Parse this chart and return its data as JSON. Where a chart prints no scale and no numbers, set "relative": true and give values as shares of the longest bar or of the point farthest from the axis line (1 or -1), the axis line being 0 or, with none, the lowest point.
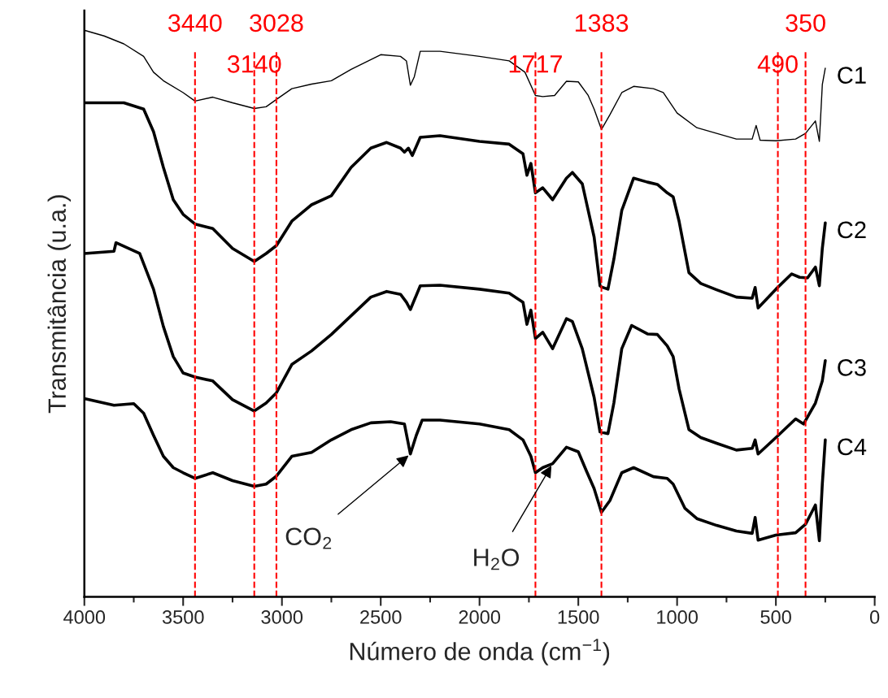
{
  "chart_data": {
    "type": "line",
    "relative": true,
    "xlabel": "Número de onda (cm$^{−1}$)",
    "ylabel": "Transmitância (u.a.)",
    "xlim": [
      4000,
      0
    ],
    "xticks": [
      4000,
      {
        "value": 3750,
        "label": null
      },
      3500,
      {
        "value": 3250,
        "label": null
      },
      3000,
      {
        "value": 2750,
        "label": null
      },
      2500,
      {
        "value": 2250,
        "label": null
      },
      2000,
      {
        "value": 1750,
        "label": null
      },
      1500,
      {
        "value": 1250,
        "label": null
      },
      1000,
      {
        "value": 750,
        "label": null
      },
      500,
      {
        "value": 250,
        "label": null
      },
      0
    ],
    "grid": false,
    "legend": false,
    "marker": "none",
    "line_style": "solid",
    "series": [
      {
        "name": "C1",
        "color": "#000000",
        "x": [
          4000,
          3900,
          3800,
          3700,
          3650,
          3600,
          3500,
          3440,
          3350,
          3250,
          3140,
          3080,
          3028,
          2950,
          2850,
          2750,
          2650,
          2500,
          2400,
          2370,
          2350,
          2330,
          2300,
          2200,
          2000,
          1850,
          1770,
          1717,
          1680,
          1620,
          1560,
          1500,
          1450,
          1420,
          1383,
          1340,
          1280,
          1220,
          1120,
          1070,
          1000,
          900,
          800,
          700,
          620,
          600,
          580,
          500,
          400,
          350,
          300,
          280,
          265,
          250
        ],
        "values": [
          1.0,
          0.99,
          0.976,
          0.954,
          0.926,
          0.911,
          0.89,
          0.875,
          0.882,
          0.872,
          0.862,
          0.865,
          0.878,
          0.897,
          0.905,
          0.911,
          0.931,
          0.957,
          0.954,
          0.946,
          0.903,
          0.918,
          0.963,
          0.963,
          0.954,
          0.946,
          0.926,
          0.885,
          0.883,
          0.885,
          0.91,
          0.909,
          0.885,
          0.861,
          0.825,
          0.851,
          0.89,
          0.901,
          0.897,
          0.89,
          0.854,
          0.828,
          0.818,
          0.808,
          0.808,
          0.832,
          0.806,
          0.805,
          0.808,
          0.818,
          0.84,
          0.804,
          0.904,
          0.933
        ]
      },
      {
        "name": "C2",
        "color": "#000000",
        "x": [
          4000,
          3800,
          3700,
          3650,
          3600,
          3550,
          3500,
          3440,
          3350,
          3250,
          3140,
          3080,
          3028,
          2950,
          2850,
          2750,
          2650,
          2550,
          2470,
          2400,
          2380,
          2360,
          2340,
          2300,
          2200,
          2000,
          1850,
          1780,
          1760,
          1740,
          1717,
          1680,
          1630,
          1560,
          1530,
          1480,
          1420,
          1390,
          1383,
          1350,
          1320,
          1280,
          1220,
          1150,
          1100,
          1050,
          1020,
          990,
          940,
          880,
          800,
          700,
          620,
          605,
          590,
          500,
          420,
          380,
          340,
          300,
          280,
          265,
          250
        ],
        "values": [
          0.872,
          0.872,
          0.861,
          0.821,
          0.758,
          0.701,
          0.675,
          0.658,
          0.65,
          0.615,
          0.592,
          0.606,
          0.62,
          0.663,
          0.692,
          0.708,
          0.758,
          0.792,
          0.802,
          0.792,
          0.785,
          0.792,
          0.779,
          0.811,
          0.814,
          0.804,
          0.799,
          0.782,
          0.744,
          0.765,
          0.713,
          0.722,
          0.701,
          0.739,
          0.749,
          0.729,
          0.635,
          0.549,
          0.547,
          0.543,
          0.596,
          0.682,
          0.739,
          0.732,
          0.728,
          0.713,
          0.706,
          0.663,
          0.572,
          0.553,
          0.542,
          0.529,
          0.527,
          0.546,
          0.51,
          0.543,
          0.57,
          0.564,
          0.563,
          0.582,
          0.549,
          0.615,
          0.66
        ]
      },
      {
        "name": "C3",
        "color": "#000000",
        "x": [
          4000,
          3850,
          3840,
          3720,
          3650,
          3600,
          3550,
          3500,
          3440,
          3350,
          3250,
          3140,
          3080,
          3028,
          2950,
          2850,
          2750,
          2650,
          2550,
          2470,
          2400,
          2370,
          2350,
          2300,
          2200,
          2000,
          1850,
          1780,
          1760,
          1740,
          1717,
          1680,
          1630,
          1560,
          1530,
          1480,
          1420,
          1390,
          1350,
          1320,
          1280,
          1230,
          1150,
          1100,
          1050,
          1020,
          990,
          940,
          880,
          800,
          700,
          620,
          605,
          590,
          500,
          400,
          360,
          300,
          265,
          250
        ],
        "values": [
          0.606,
          0.61,
          0.625,
          0.606,
          0.543,
          0.477,
          0.424,
          0.395,
          0.388,
          0.381,
          0.348,
          0.328,
          0.342,
          0.36,
          0.41,
          0.434,
          0.463,
          0.496,
          0.529,
          0.539,
          0.534,
          0.52,
          0.507,
          0.549,
          0.55,
          0.543,
          0.536,
          0.52,
          0.481,
          0.506,
          0.456,
          0.467,
          0.438,
          0.491,
          0.486,
          0.438,
          0.352,
          0.291,
          0.288,
          0.342,
          0.438,
          0.479,
          0.464,
          0.463,
          0.443,
          0.424,
          0.367,
          0.295,
          0.281,
          0.271,
          0.259,
          0.262,
          0.277,
          0.252,
          0.281,
          0.314,
          0.305,
          0.342,
          0.381,
          0.417
        ]
      },
      {
        "name": "C4",
        "color": "#000000",
        "x": [
          4000,
          3850,
          3750,
          3700,
          3650,
          3600,
          3550,
          3500,
          3440,
          3350,
          3250,
          3140,
          3080,
          3028,
          2950,
          2850,
          2750,
          2650,
          2550,
          2450,
          2380,
          2350,
          2320,
          2290,
          2200,
          2000,
          1850,
          1780,
          1740,
          1717,
          1680,
          1630,
          1560,
          1500,
          1460,
          1420,
          1383,
          1340,
          1280,
          1220,
          1120,
          1050,
          1020,
          960,
          900,
          800,
          700,
          620,
          605,
          590,
          500,
          400,
          350,
          300,
          280,
          265,
          250
        ],
        "values": [
          0.35,
          0.338,
          0.341,
          0.324,
          0.285,
          0.248,
          0.228,
          0.219,
          0.209,
          0.219,
          0.205,
          0.195,
          0.199,
          0.213,
          0.248,
          0.255,
          0.277,
          0.295,
          0.307,
          0.309,
          0.305,
          0.252,
          0.285,
          0.312,
          0.312,
          0.305,
          0.295,
          0.277,
          0.248,
          0.219,
          0.228,
          0.235,
          0.264,
          0.256,
          0.223,
          0.191,
          0.149,
          0.17,
          0.219,
          0.228,
          0.212,
          0.209,
          0.199,
          0.156,
          0.138,
          0.126,
          0.116,
          0.112,
          0.14,
          0.1,
          0.109,
          0.113,
          0.128,
          0.162,
          0.099,
          0.199,
          0.277
        ]
      }
    ],
    "ref_lines": [
      {
        "axis": "x",
        "value": 3440,
        "label": "3440",
        "color": "#ff0000",
        "line_style": "dashed"
      },
      {
        "axis": "x",
        "value": 3140,
        "label": "3140",
        "color": "#ff0000",
        "line_style": "dashed"
      },
      {
        "axis": "x",
        "value": 3028,
        "label": "3028",
        "color": "#ff0000",
        "line_style": "dashed"
      },
      {
        "axis": "x",
        "value": 1717,
        "label": "1717",
        "color": "#ff0000",
        "line_style": "dashed"
      },
      {
        "axis": "x",
        "value": 1383,
        "label": "1383",
        "color": "#ff0000",
        "line_style": "dashed"
      },
      {
        "axis": "x",
        "value": 490,
        "label": "490",
        "color": "#ff0000",
        "line_style": "dashed"
      },
      {
        "axis": "x",
        "value": 350,
        "label": "350",
        "color": "#ff0000",
        "line_style": "dashed"
      }
    ],
    "annotations": [
      {
        "text": "CO$_{2}$",
        "x": 2350,
        "y": 0.252
      },
      {
        "text": "H$_{2}$O",
        "x": 1630,
        "y": 0.235
      }
    ]
  }
}
